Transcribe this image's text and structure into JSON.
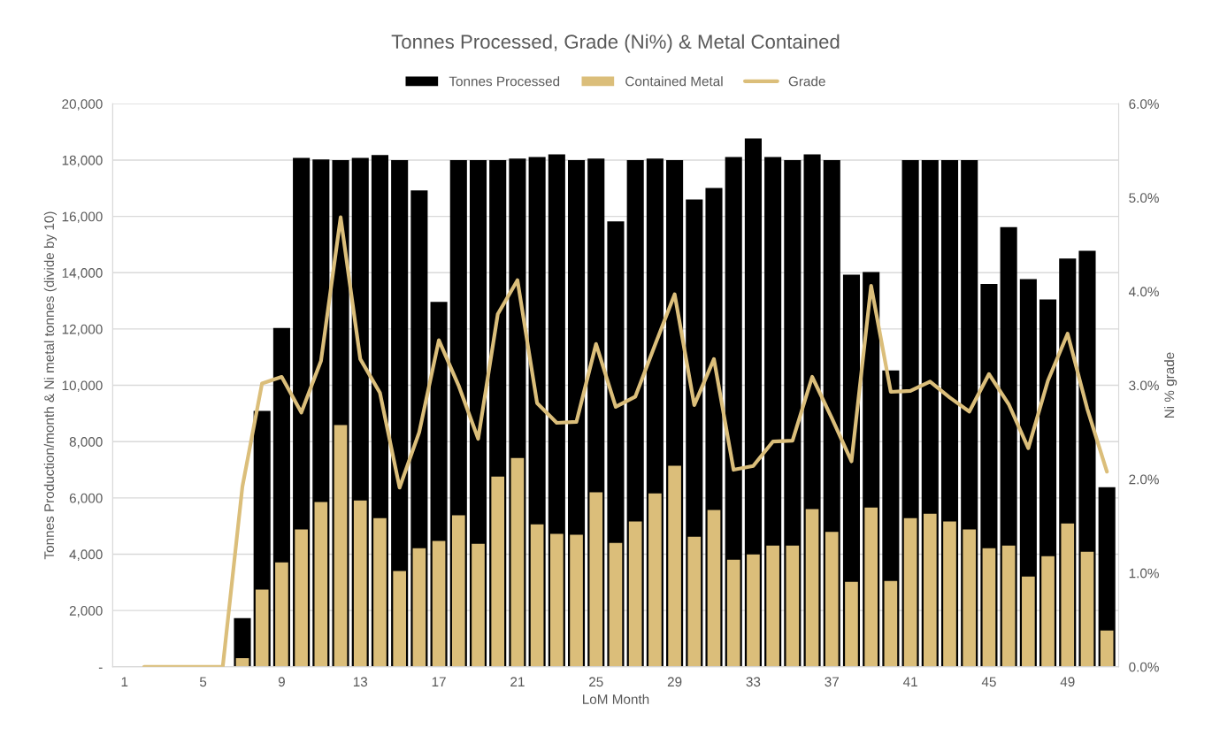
{
  "chart_data": {
    "type": "bar",
    "title": "Tonnes Processed, Grade (Ni%) & Metal Contained",
    "xlabel": "LoM Month",
    "ylabel": "Tonnes Production/month & Ni metal tonnes (divide by 10)",
    "y2label": "Ni % grade",
    "categories": [
      "1",
      null,
      null,
      null,
      "5",
      null,
      null,
      null,
      "9",
      null,
      null,
      null,
      "13",
      null,
      null,
      null,
      "17",
      null,
      null,
      null,
      "21",
      null,
      null,
      null,
      "25",
      null,
      null,
      null,
      "29",
      null,
      null,
      null,
      "33",
      null,
      null,
      null,
      "37",
      null,
      null,
      null,
      "41",
      null,
      null,
      null,
      "45",
      null,
      null,
      null,
      "49",
      null,
      null
    ],
    "series": [
      {
        "name": "Tonnes Processed",
        "color": "#000000",
        "values": [
          0,
          0,
          0,
          0,
          0,
          0,
          1730,
          9090,
          12040,
          18080,
          18020,
          18000,
          18080,
          18180,
          18000,
          16920,
          12960,
          18000,
          18000,
          18000,
          18050,
          18110,
          18200,
          18000,
          18050,
          15820,
          18000,
          18050,
          18000,
          16600,
          17010,
          18110,
          18770,
          18110,
          18000,
          18200,
          18000,
          13930,
          14020,
          10530,
          18000,
          18000,
          18000,
          18000,
          13600,
          15620,
          13770,
          13050,
          14500,
          14780,
          6380
        ]
      },
      {
        "name": "Contained Metal",
        "color": "#dbbe7a",
        "values": [
          0,
          0,
          0,
          0,
          0,
          0,
          310,
          2740,
          3710,
          4880,
          5850,
          8590,
          5910,
          5280,
          3400,
          4210,
          4470,
          5380,
          4370,
          6760,
          7420,
          5060,
          4720,
          4690,
          6200,
          4400,
          5160,
          6160,
          7140,
          4620,
          5570,
          3800,
          3990,
          4310,
          4310,
          5600,
          4790,
          3020,
          5660,
          3050,
          5280,
          5440,
          5160,
          4880,
          4210,
          4310,
          3210,
          3930,
          5090,
          4090,
          1290
        ]
      },
      {
        "name": "Grade",
        "type": "line",
        "axis": "y2",
        "color": "#dbbe7a",
        "values": [
          null,
          0,
          0,
          0,
          0,
          0,
          1.92,
          3.02,
          3.09,
          2.71,
          3.26,
          4.79,
          3.28,
          2.92,
          1.91,
          2.5,
          3.48,
          3.0,
          2.43,
          3.76,
          4.12,
          2.81,
          2.6,
          2.61,
          3.44,
          2.77,
          2.88,
          3.43,
          3.97,
          2.79,
          3.28,
          2.1,
          2.14,
          2.4,
          2.41,
          3.09,
          2.65,
          2.19,
          4.06,
          2.93,
          2.94,
          3.04,
          2.87,
          2.72,
          3.12,
          2.8,
          2.33,
          3.05,
          3.55,
          2.75,
          2.08
        ]
      }
    ],
    "ylim": [
      0,
      20000
    ],
    "yticks": [
      {
        "value": 0,
        "label": "-"
      },
      {
        "value": 2000,
        "label": "2,000"
      },
      {
        "value": 4000,
        "label": "4,000"
      },
      {
        "value": 6000,
        "label": "6,000"
      },
      {
        "value": 8000,
        "label": "8,000"
      },
      {
        "value": 10000,
        "label": "10,000"
      },
      {
        "value": 12000,
        "label": "12,000"
      },
      {
        "value": 14000,
        "label": "14,000"
      },
      {
        "value": 16000,
        "label": "16,000"
      },
      {
        "value": 18000,
        "label": "18,000"
      },
      {
        "value": 20000,
        "label": "20,000"
      }
    ],
    "y2lim": [
      0,
      6
    ],
    "y2ticks": [
      {
        "value": 0,
        "label": "0.0%"
      },
      {
        "value": 1,
        "label": "1.0%"
      },
      {
        "value": 2,
        "label": "2.0%"
      },
      {
        "value": 3,
        "label": "3.0%"
      },
      {
        "value": 4,
        "label": "4.0%"
      },
      {
        "value": 5,
        "label": "5.0%"
      },
      {
        "value": 6,
        "label": "6.0%"
      }
    ],
    "grid": "y",
    "legend": "top",
    "line_style": "solid",
    "marker": "none"
  }
}
